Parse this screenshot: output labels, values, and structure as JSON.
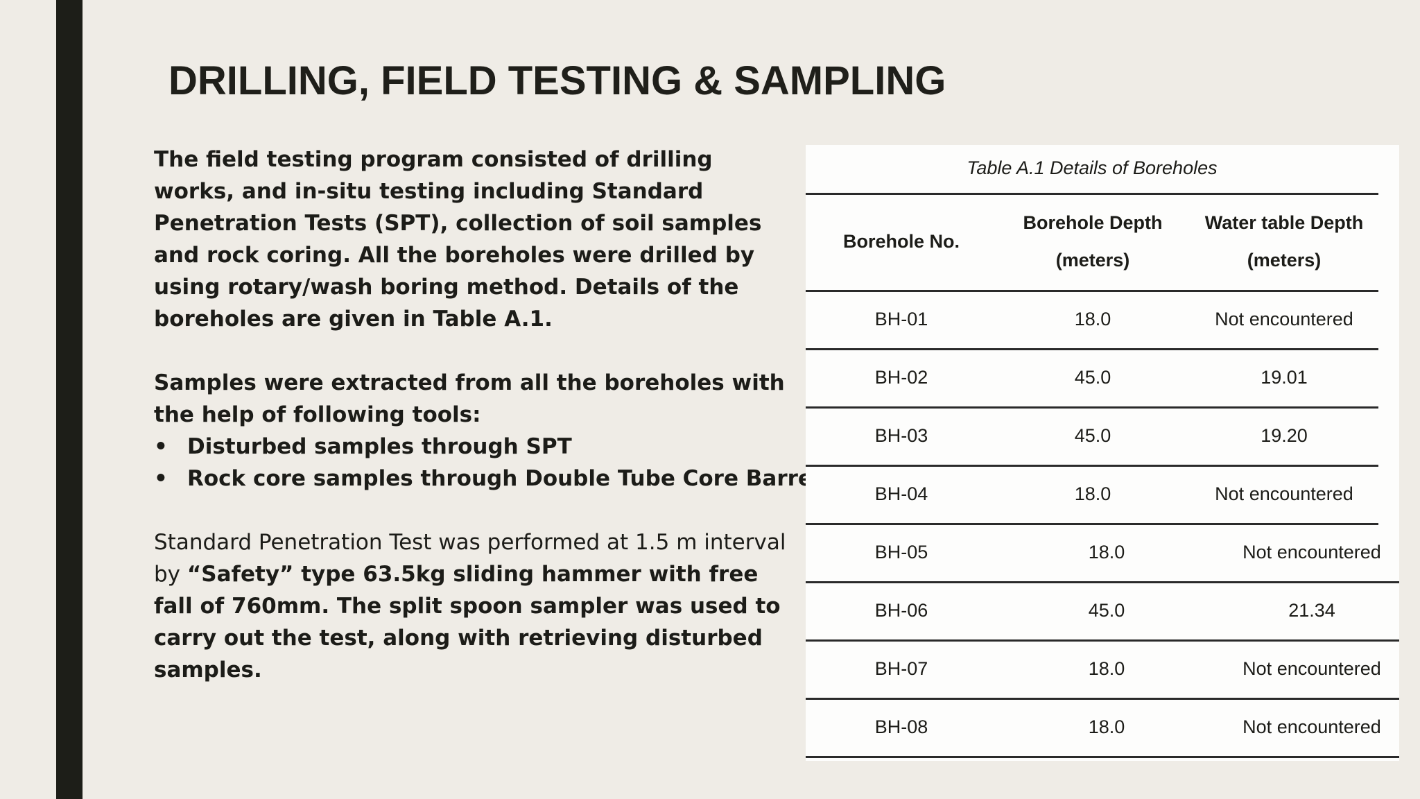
{
  "title": "DRILLING, FIELD TESTING & SAMPLING",
  "body": {
    "paragraph1": "The field testing program consisted of drilling works, and in-situ testing including Standard Penetration Tests (SPT), collection of soil samples and rock coring. All the boreholes were drilled by using rotary/wash boring method. Details of the boreholes are given in Table A.1.",
    "paragraph2": "Samples were extracted from all the boreholes with the help of following tools:",
    "bullets": [
      "Disturbed samples through SPT",
      "Rock core samples through Double Tube Core Barrel"
    ],
    "paragraph3": {
      "normal": "Standard Penetration Test was performed at 1.5 m interval by ",
      "bold": "“Safety” type 63.5kg sliding hammer with free fall of 760mm. The split spoon sampler was used to carry out the test, along with retrieving disturbed samples."
    }
  },
  "table": {
    "caption": "Table A.1 Details of Boreholes",
    "headers": [
      [
        "Borehole No."
      ],
      [
        "Borehole Depth",
        "(meters)"
      ],
      [
        "Water table Depth",
        "(meters)"
      ]
    ],
    "rows": [
      [
        "BH-01",
        "18.0",
        "Not encountered"
      ],
      [
        "BH-02",
        "45.0",
        "19.01"
      ],
      [
        "BH-03",
        "45.0",
        "19.20"
      ],
      [
        "BH-04",
        "18.0",
        "Not encountered"
      ],
      [
        "BH-05",
        "18.0",
        "Not encountered"
      ],
      [
        "BH-06",
        "45.0",
        "21.34"
      ],
      [
        "BH-07",
        "18.0",
        "Not encountered"
      ],
      [
        "BH-08",
        "18.0",
        "Not encountered"
      ]
    ]
  }
}
